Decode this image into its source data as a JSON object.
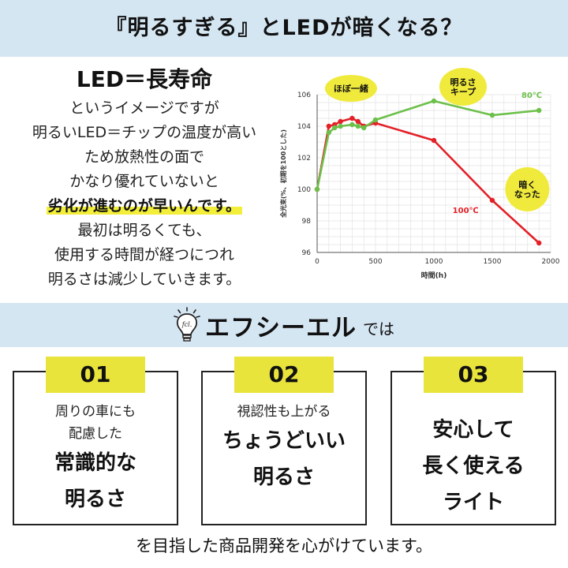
{
  "header": {
    "title": "『明るすぎる』とLEDが暗くなる？"
  },
  "left": {
    "heading": "LED＝長寿命",
    "lines": [
      "というイメージですが",
      "明るいLED＝チップの温度が高い",
      "ため放熱性の面で",
      "かなり優れていないと",
      "劣化が進むのが早いんです。",
      "最初は明るくても、",
      "使用する時間が経つにつれ",
      "明るさは減少していきます。"
    ]
  },
  "chart_data": {
    "type": "line",
    "xlabel": "時間(h)",
    "ylabel": "全光束(%、初期を100とした)",
    "xlim": [
      0,
      2000
    ],
    "ylim": [
      96,
      106
    ],
    "xticks": [
      "0",
      "500",
      "1000",
      "1500",
      "2000"
    ],
    "yticks": [
      "96",
      "98",
      "100",
      "102",
      "104",
      "106"
    ],
    "grid": true,
    "series": [
      {
        "name": "80℃",
        "color": "#6cc04a",
        "x": [
          0,
          100,
          150,
          200,
          300,
          350,
          400,
          500,
          1000,
          1500,
          1900
        ],
        "y": [
          100,
          103.6,
          103.9,
          104.0,
          104.1,
          104.0,
          103.9,
          104.4,
          105.6,
          104.7,
          105.0
        ]
      },
      {
        "name": "100℃",
        "color": "#e32028",
        "x": [
          0,
          100,
          150,
          200,
          300,
          350,
          400,
          500,
          1000,
          1500,
          1900
        ],
        "y": [
          100,
          104.0,
          104.1,
          104.3,
          104.5,
          104.3,
          104.0,
          104.2,
          103.1,
          99.3,
          96.6
        ]
      }
    ],
    "annotations": [
      {
        "text": "ほぼ一緒"
      },
      {
        "text": "明るさ\nキープ"
      },
      {
        "text": "暗く\nなった"
      }
    ]
  },
  "brand": {
    "logo_text": "fcl.",
    "name": "エフシーエル",
    "suffix": "では"
  },
  "cards": [
    {
      "number": "01",
      "sub": [
        "周りの車にも",
        "配慮した"
      ],
      "main": [
        "常識的な",
        "明るさ"
      ]
    },
    {
      "number": "02",
      "sub": [
        "視認性も上がる"
      ],
      "main": [
        "ちょうどいい",
        "明るさ"
      ]
    },
    {
      "number": "03",
      "sub": [],
      "main": [
        "安心して",
        "長く使える",
        "ライト"
      ]
    }
  ],
  "footer": {
    "text": "を目指した商品開発を心がけています。"
  },
  "colors": {
    "band": "#d5e6f3",
    "accent_yellow": "#e9e43b",
    "highlight": "#f2ee3a"
  }
}
